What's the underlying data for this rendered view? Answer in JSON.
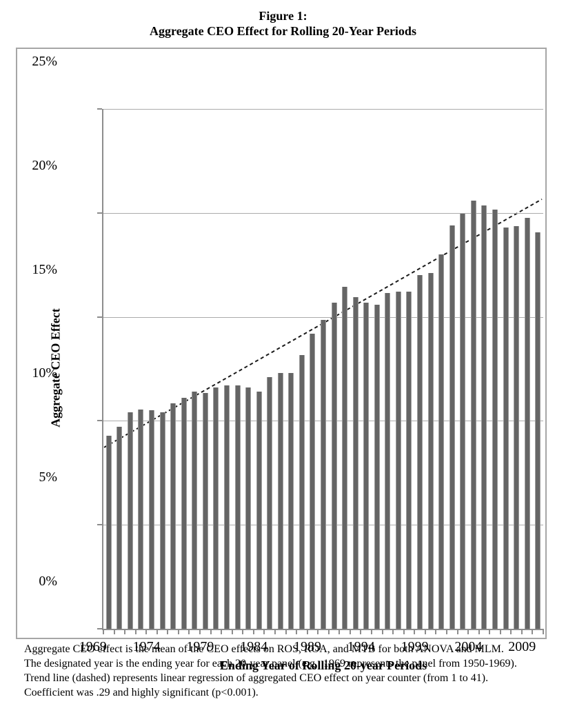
{
  "figure": {
    "title_line1": "Figure 1:",
    "title_line2": "Aggregate CEO Effect for Rolling 20-Year Periods"
  },
  "chart_data": {
    "type": "bar",
    "title": "Figure 1: Aggregate CEO Effect for Rolling 20-Year Periods",
    "xlabel": "Ending Year of Rolling 20-year Periods",
    "ylabel": "Aggregate CEO Effect",
    "categories": [
      1969,
      1970,
      1971,
      1972,
      1973,
      1974,
      1975,
      1976,
      1977,
      1978,
      1979,
      1980,
      1981,
      1982,
      1983,
      1984,
      1985,
      1986,
      1987,
      1988,
      1989,
      1990,
      1991,
      1992,
      1993,
      1994,
      1995,
      1996,
      1997,
      1998,
      1999,
      2000,
      2001,
      2002,
      2003,
      2004,
      2005,
      2006,
      2007,
      2008,
      2009
    ],
    "values": [
      9.3,
      9.7,
      10.4,
      10.55,
      10.5,
      10.4,
      10.85,
      11.1,
      11.4,
      11.35,
      11.6,
      11.7,
      11.7,
      11.6,
      11.4,
      12.1,
      12.3,
      12.3,
      13.15,
      14.2,
      14.85,
      15.7,
      16.45,
      15.95,
      15.7,
      15.6,
      16.15,
      16.2,
      16.2,
      17.0,
      17.1,
      18.0,
      19.4,
      19.95,
      20.6,
      20.35,
      20.15,
      19.3,
      19.35,
      19.75,
      19.05
    ],
    "ylim": [
      0,
      25
    ],
    "y_ticks": [
      {
        "label": "0%",
        "value": 0
      },
      {
        "label": "5%",
        "value": 5
      },
      {
        "label": "10%",
        "value": 10
      },
      {
        "label": "15%",
        "value": 15
      },
      {
        "label": "20%",
        "value": 20
      },
      {
        "label": "25%",
        "value": 25
      }
    ],
    "x_tick_labels": [
      "1969",
      "1974",
      "1979",
      "1984",
      "1989",
      "1994",
      "1999",
      "2004",
      "2009"
    ],
    "grid": true,
    "legend": "none",
    "bar_color": "#656565",
    "gridline_color": "#ababab",
    "trend_line": {
      "style": "dashed",
      "color": "#1a1a1a",
      "start": {
        "year": 1969,
        "value": 8.85
      },
      "end": {
        "year": 2009,
        "value": 20.55
      }
    }
  },
  "caption": {
    "lines": [
      "Aggregate CEO effect is the mean of the CEO effects on ROS, ROA, and MTB for both ANOVA and MLM.",
      "The designated year is the ending year for each 20-year panel (e.g., 1969 represents the panel from 1950-1969).",
      "Trend line (dashed) represents linear regression of aggregated CEO effect on year counter (from 1 to 41).",
      "Coefficient was .29 and highly significant (p<0.001)."
    ]
  }
}
